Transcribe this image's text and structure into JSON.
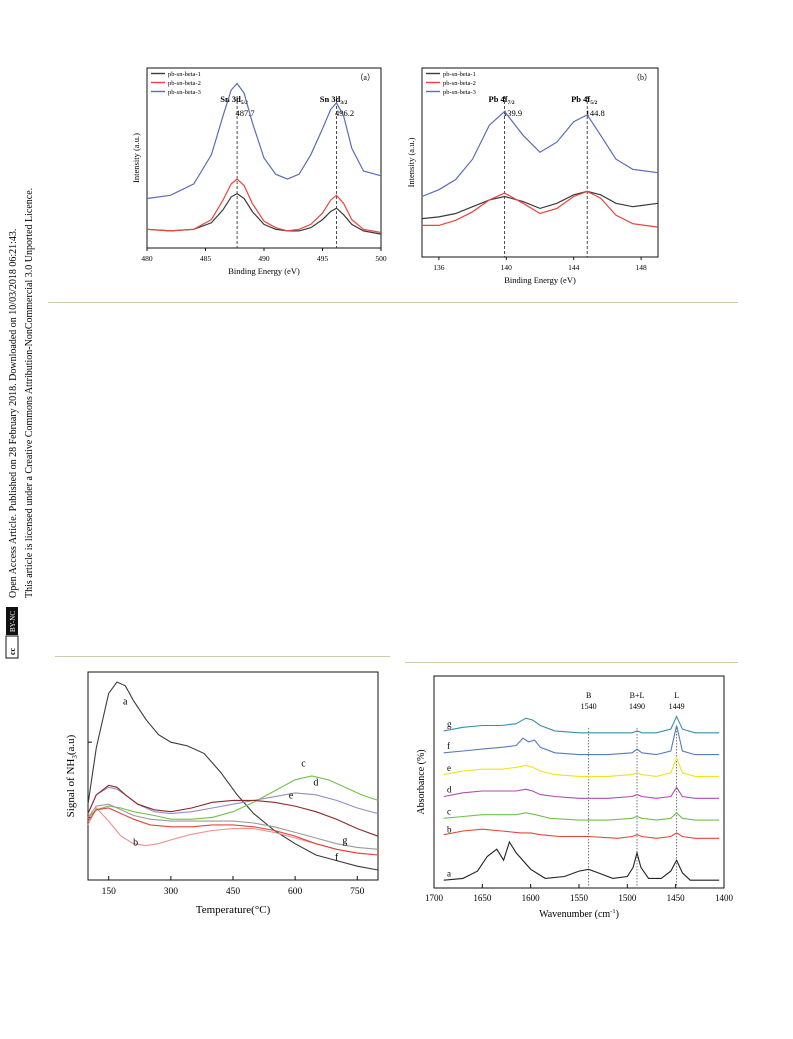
{
  "sidebar": {
    "line1": "Open Access Article. Published on 28 February 2018. Downloaded on 10/03/2018 06:21:43.",
    "line2": "This article is licensed under a Creative Commons Attribution-NonCommercial 3.0 Unported Licence.",
    "badge_cc": "cc",
    "badge_by": "BY-NC"
  },
  "colors": {
    "black": "#3a3a3a",
    "red": "#e8453c",
    "blue": "#5a6db5",
    "green": "#6fc24a",
    "purple": "#b04ab5",
    "yellow": "#f3e21a",
    "maroon": "#8b2a2a",
    "pink": "#ef8f8f",
    "gray": "#9a9a9a",
    "rule": "#c9cfa8"
  },
  "chart_data": [
    {
      "id": "a",
      "type": "line",
      "panel_label": "（a）",
      "xlabel": "Binding Energy (eV)",
      "ylabel": "Intensity (a.u.)",
      "xlim": [
        480,
        500
      ],
      "xticks": [
        "480",
        "485",
        "490",
        "495",
        "500"
      ],
      "legend": [
        "pb-sn-beta-1",
        "pb-sn-beta-2",
        "pb-sn-beta-3"
      ],
      "annotations": [
        {
          "x": 487.7,
          "title": "Sn  3d",
          "sub": "5/2",
          "value": "487.7"
        },
        {
          "x": 496.2,
          "title": "Sn  3d",
          "sub": "3/2",
          "value": "496.2"
        }
      ],
      "series": [
        {
          "name": "pb-sn-beta-1",
          "color": "#3a3a3a",
          "x": [
            480,
            482,
            484,
            485.5,
            486.5,
            487.2,
            487.7,
            488.3,
            489,
            490,
            491,
            492,
            493,
            494,
            495,
            495.7,
            496.2,
            496.8,
            497.5,
            498.5,
            500
          ],
          "y": [
            0.06,
            0.05,
            0.06,
            0.1,
            0.18,
            0.26,
            0.28,
            0.25,
            0.17,
            0.09,
            0.06,
            0.05,
            0.05,
            0.07,
            0.12,
            0.17,
            0.19,
            0.15,
            0.09,
            0.05,
            0.03
          ]
        },
        {
          "name": "pb-sn-beta-2",
          "color": "#e8453c",
          "x": [
            480,
            482,
            484,
            485.5,
            486.5,
            487.2,
            487.7,
            488.3,
            489,
            490,
            491,
            492,
            493,
            494,
            495,
            495.7,
            496.2,
            496.8,
            497.5,
            498.5,
            500
          ],
          "y": [
            0.06,
            0.05,
            0.06,
            0.12,
            0.24,
            0.34,
            0.37,
            0.33,
            0.22,
            0.11,
            0.07,
            0.05,
            0.06,
            0.09,
            0.16,
            0.24,
            0.27,
            0.22,
            0.12,
            0.06,
            0.04
          ]
        },
        {
          "name": "pb-sn-beta-3",
          "color": "#5a6db5",
          "x": [
            480,
            482,
            484,
            485.5,
            486.5,
            487.2,
            487.7,
            488.3,
            489,
            490,
            491,
            492,
            493,
            494,
            495,
            495.7,
            496.2,
            496.8,
            497.5,
            498.5,
            500
          ],
          "y": [
            0.25,
            0.27,
            0.34,
            0.52,
            0.76,
            0.92,
            0.96,
            0.9,
            0.72,
            0.5,
            0.4,
            0.37,
            0.4,
            0.52,
            0.68,
            0.8,
            0.84,
            0.76,
            0.56,
            0.42,
            0.39
          ]
        }
      ]
    },
    {
      "id": "b",
      "type": "line",
      "panel_label": "（b）",
      "xlabel": "Binding Energy (eV)",
      "ylabel": "Intensity (a.u.)",
      "xlim": [
        135,
        149
      ],
      "xticks": [
        "136",
        "140",
        "144",
        "148"
      ],
      "legend": [
        "pb-sn-beta-1",
        "pb-sn-beta-2",
        "pb-sn-beta-3"
      ],
      "annotations": [
        {
          "x": 139.9,
          "title": "Pb 4f",
          "sub": "7/2",
          "value": "139.9"
        },
        {
          "x": 144.8,
          "title": "Pb 4f",
          "sub": "5/2",
          "value": "144.8"
        }
      ],
      "series": [
        {
          "name": "pb-sn-beta-1",
          "color": "#3a3a3a",
          "x": [
            135,
            136,
            137,
            138,
            139,
            139.9,
            141,
            142,
            143,
            144,
            144.8,
            145.6,
            146.5,
            147.5,
            149
          ],
          "y": [
            0.17,
            0.18,
            0.2,
            0.24,
            0.28,
            0.3,
            0.27,
            0.23,
            0.26,
            0.31,
            0.33,
            0.31,
            0.26,
            0.24,
            0.26
          ]
        },
        {
          "name": "pb-sn-beta-2",
          "color": "#e8453c",
          "x": [
            135,
            136,
            137,
            138,
            139,
            139.9,
            141,
            142,
            143,
            144,
            144.8,
            145.6,
            146.5,
            147.5,
            149
          ],
          "y": [
            0.13,
            0.13,
            0.16,
            0.21,
            0.28,
            0.32,
            0.26,
            0.2,
            0.23,
            0.3,
            0.33,
            0.29,
            0.19,
            0.14,
            0.12
          ]
        },
        {
          "name": "pb-sn-beta-3",
          "color": "#5a6db5",
          "x": [
            135,
            136,
            137,
            138,
            139,
            139.9,
            141,
            142,
            143,
            144,
            144.8,
            145.6,
            146.5,
            147.5,
            149
          ],
          "y": [
            0.3,
            0.34,
            0.4,
            0.52,
            0.72,
            0.8,
            0.66,
            0.56,
            0.62,
            0.74,
            0.78,
            0.66,
            0.52,
            0.46,
            0.44
          ]
        }
      ]
    },
    {
      "id": "tpd",
      "type": "line",
      "xlabel": "Temperature(°C)",
      "ylabel": "Signal of NH",
      "ylabel_sub": "3",
      "ylabel_tail": "(a.u)",
      "xlim": [
        100,
        800
      ],
      "xticks": [
        "150",
        "300",
        "450",
        "600",
        "750"
      ],
      "labels": [
        {
          "text": "a",
          "x": 190,
          "y": 0.88
        },
        {
          "text": "c",
          "x": 620,
          "y": 0.55
        },
        {
          "text": "d",
          "x": 650,
          "y": 0.45
        },
        {
          "text": "e",
          "x": 590,
          "y": 0.38
        },
        {
          "text": "b",
          "x": 215,
          "y": 0.13
        },
        {
          "text": "g",
          "x": 720,
          "y": 0.14
        },
        {
          "text": "f",
          "x": 700,
          "y": 0.05
        }
      ],
      "series": [
        {
          "name": "a",
          "color": "#3a3a3a",
          "x": [
            100,
            120,
            150,
            170,
            190,
            210,
            240,
            270,
            300,
            340,
            380,
            420,
            460,
            500,
            550,
            600,
            650,
            700,
            750,
            800
          ],
          "y": [
            0.35,
            0.65,
            0.94,
            1.0,
            0.98,
            0.9,
            0.8,
            0.72,
            0.68,
            0.66,
            0.62,
            0.52,
            0.4,
            0.3,
            0.21,
            0.14,
            0.08,
            0.05,
            0.02,
            0.0
          ]
        },
        {
          "name": "b",
          "color": "#ef8f8f",
          "x": [
            100,
            120,
            150,
            180,
            210,
            240,
            270,
            300,
            350,
            400,
            450,
            500,
            550,
            600,
            650,
            700,
            750,
            800
          ],
          "y": [
            0.24,
            0.33,
            0.26,
            0.18,
            0.14,
            0.13,
            0.14,
            0.16,
            0.19,
            0.21,
            0.22,
            0.22,
            0.2,
            0.17,
            0.14,
            0.11,
            0.09,
            0.08
          ]
        },
        {
          "name": "c",
          "color": "#6fc24a",
          "x": [
            100,
            120,
            150,
            180,
            210,
            260,
            300,
            350,
            400,
            450,
            500,
            550,
            600,
            640,
            680,
            720,
            760,
            800
          ],
          "y": [
            0.28,
            0.32,
            0.34,
            0.33,
            0.31,
            0.29,
            0.27,
            0.27,
            0.28,
            0.31,
            0.36,
            0.42,
            0.48,
            0.5,
            0.48,
            0.44,
            0.4,
            0.37
          ]
        },
        {
          "name": "d",
          "color": "#9a8ac8",
          "x": [
            100,
            120,
            150,
            170,
            190,
            220,
            260,
            300,
            350,
            400,
            450,
            500,
            550,
            600,
            650,
            700,
            750,
            800
          ],
          "y": [
            0.3,
            0.4,
            0.44,
            0.43,
            0.4,
            0.35,
            0.31,
            0.3,
            0.31,
            0.33,
            0.35,
            0.37,
            0.39,
            0.41,
            0.4,
            0.37,
            0.33,
            0.3
          ]
        },
        {
          "name": "e",
          "color": "#8b2a2a",
          "x": [
            100,
            120,
            150,
            170,
            190,
            220,
            260,
            300,
            350,
            400,
            450,
            500,
            550,
            600,
            650,
            700,
            750,
            800
          ],
          "y": [
            0.3,
            0.4,
            0.45,
            0.44,
            0.4,
            0.35,
            0.32,
            0.31,
            0.33,
            0.36,
            0.37,
            0.37,
            0.36,
            0.34,
            0.31,
            0.27,
            0.22,
            0.18
          ]
        },
        {
          "name": "f",
          "color": "#e8453c",
          "x": [
            100,
            120,
            150,
            180,
            210,
            250,
            300,
            350,
            400,
            450,
            500,
            550,
            600,
            650,
            700,
            750,
            800
          ],
          "y": [
            0.26,
            0.32,
            0.33,
            0.3,
            0.27,
            0.24,
            0.23,
            0.23,
            0.24,
            0.24,
            0.23,
            0.21,
            0.18,
            0.14,
            0.11,
            0.09,
            0.08
          ]
        },
        {
          "name": "g",
          "color": "#9a9a9a",
          "x": [
            100,
            120,
            150,
            180,
            210,
            250,
            300,
            350,
            400,
            450,
            500,
            550,
            600,
            650,
            700,
            750,
            800
          ],
          "y": [
            0.28,
            0.34,
            0.35,
            0.32,
            0.29,
            0.27,
            0.26,
            0.26,
            0.26,
            0.26,
            0.25,
            0.23,
            0.2,
            0.17,
            0.14,
            0.12,
            0.11
          ]
        }
      ]
    },
    {
      "id": "ir",
      "type": "line",
      "xlabel": "Wavenumber (cm",
      "xlabel_sup": "-1",
      "xlabel_tail": ")",
      "ylabel": "Absorbance (%)",
      "xlim": [
        1700,
        1400
      ],
      "xticks": [
        "1700",
        "1650",
        "1600",
        "1550",
        "1500",
        "1450",
        "1400"
      ],
      "peaks": [
        {
          "x": 1540,
          "name": "B",
          "value": "1540"
        },
        {
          "x": 1490,
          "name": "B+L",
          "value": "1490"
        },
        {
          "x": 1449,
          "name": "L",
          "value": "1449"
        }
      ],
      "series": [
        {
          "name": "a",
          "color": "#222222",
          "offset": 0.0,
          "x": [
            1690,
            1670,
            1655,
            1645,
            1635,
            1628,
            1622,
            1615,
            1600,
            1585,
            1565,
            1550,
            1540,
            1530,
            1515,
            1500,
            1494,
            1490,
            1486,
            1478,
            1465,
            1455,
            1449,
            1443,
            1435,
            1420,
            1405
          ],
          "y": [
            0.01,
            0.02,
            0.06,
            0.14,
            0.18,
            0.12,
            0.22,
            0.16,
            0.07,
            0.02,
            0.03,
            0.06,
            0.07,
            0.05,
            0.02,
            0.03,
            0.08,
            0.16,
            0.08,
            0.02,
            0.02,
            0.06,
            0.12,
            0.05,
            0.01,
            0.01,
            0.01
          ]
        },
        {
          "name": "b",
          "color": "#e8453c",
          "offset": 0.24,
          "x": [
            1690,
            1670,
            1650,
            1630,
            1610,
            1600,
            1590,
            1570,
            1540,
            1510,
            1495,
            1490,
            1485,
            1470,
            1455,
            1449,
            1443,
            1430,
            1405
          ],
          "y": [
            0.02,
            0.04,
            0.05,
            0.04,
            0.03,
            0.03,
            0.02,
            0.01,
            0.01,
            0.0,
            0.01,
            0.02,
            0.01,
            0.0,
            0.01,
            0.03,
            0.01,
            0.0,
            0.0
          ]
        },
        {
          "name": "c",
          "color": "#6fc24a",
          "offset": 0.34,
          "x": [
            1690,
            1670,
            1650,
            1630,
            1615,
            1605,
            1595,
            1580,
            1550,
            1520,
            1495,
            1490,
            1485,
            1470,
            1455,
            1449,
            1443,
            1430,
            1405
          ],
          "y": [
            0.01,
            0.02,
            0.03,
            0.03,
            0.03,
            0.04,
            0.03,
            0.01,
            0.0,
            0.0,
            0.01,
            0.02,
            0.01,
            0.0,
            0.01,
            0.04,
            0.01,
            0.0,
            0.0
          ]
        },
        {
          "name": "d",
          "color": "#b04ab5",
          "offset": 0.46,
          "x": [
            1690,
            1670,
            1650,
            1630,
            1615,
            1605,
            1598,
            1590,
            1575,
            1550,
            1520,
            1495,
            1490,
            1485,
            1470,
            1455,
            1449,
            1443,
            1430,
            1405
          ],
          "y": [
            0.01,
            0.03,
            0.04,
            0.04,
            0.04,
            0.05,
            0.04,
            0.02,
            0.01,
            0.0,
            0.0,
            0.01,
            0.02,
            0.01,
            0.0,
            0.01,
            0.06,
            0.01,
            0.0,
            0.0
          ]
        },
        {
          "name": "e",
          "color": "#f3e21a",
          "offset": 0.58,
          "x": [
            1690,
            1670,
            1650,
            1630,
            1615,
            1605,
            1598,
            1590,
            1575,
            1550,
            1520,
            1495,
            1490,
            1485,
            1470,
            1455,
            1449,
            1443,
            1430,
            1405
          ],
          "y": [
            0.01,
            0.03,
            0.04,
            0.04,
            0.05,
            0.06,
            0.05,
            0.03,
            0.01,
            0.0,
            0.0,
            0.01,
            0.02,
            0.01,
            0.0,
            0.02,
            0.1,
            0.02,
            0.0,
            0.0
          ]
        },
        {
          "name": "f",
          "color": "#5a7ab5",
          "offset": 0.7,
          "x": [
            1690,
            1670,
            1650,
            1630,
            1615,
            1608,
            1602,
            1596,
            1590,
            1575,
            1550,
            1520,
            1495,
            1490,
            1485,
            1470,
            1455,
            1449,
            1443,
            1430,
            1405
          ],
          "y": [
            0.01,
            0.02,
            0.03,
            0.04,
            0.05,
            0.09,
            0.07,
            0.08,
            0.04,
            0.01,
            0.0,
            0.0,
            0.01,
            0.03,
            0.01,
            0.0,
            0.02,
            0.16,
            0.02,
            0.0,
            0.0
          ]
        },
        {
          "name": "g",
          "color": "#3a8fa8",
          "offset": 0.82,
          "x": [
            1690,
            1670,
            1650,
            1630,
            1615,
            1605,
            1598,
            1590,
            1575,
            1550,
            1520,
            1495,
            1490,
            1485,
            1470,
            1455,
            1449,
            1443,
            1430,
            1405
          ],
          "y": [
            0.01,
            0.03,
            0.04,
            0.04,
            0.05,
            0.08,
            0.07,
            0.04,
            0.01,
            0.0,
            0.0,
            0.0,
            0.01,
            0.0,
            0.0,
            0.02,
            0.09,
            0.02,
            0.0,
            0.0
          ]
        }
      ]
    }
  ]
}
